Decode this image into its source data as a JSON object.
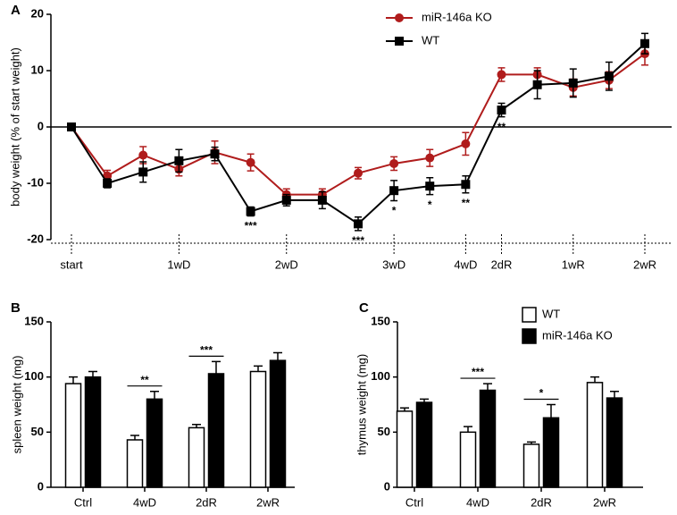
{
  "chart_data": [
    {
      "type": "line",
      "label": "A",
      "ylabel": "body weight (% of start weight)",
      "categories": [
        "start",
        null,
        null,
        "1wD",
        null,
        null,
        "2wD",
        null,
        null,
        "3wD",
        null,
        "4wD",
        "2dR",
        null,
        "1wR",
        null,
        "2wR"
      ],
      "ylim": [
        -20,
        20
      ],
      "yticks": [
        -20,
        -10,
        0,
        10,
        20
      ],
      "legend": "upper right",
      "series": [
        {
          "name": "miR-146a KO",
          "color": "#b01c1c",
          "marker": "circle",
          "values": [
            0,
            -8.7,
            -5,
            -7.5,
            -4.5,
            -6.3,
            -12,
            -12,
            -8.2,
            -6.5,
            -5.5,
            -3,
            9.3,
            9.3,
            7,
            8.3,
            13
          ],
          "errors": [
            0.5,
            1,
            1.5,
            1.2,
            2,
            1.5,
            1,
            1,
            1,
            1.2,
            1.5,
            2,
            1.2,
            1.2,
            1.5,
            1.5,
            2
          ]
        },
        {
          "name": "WT",
          "color": "#000000",
          "marker": "square",
          "values": [
            0,
            -10,
            -8,
            -6,
            -4.8,
            -15,
            -13,
            -13,
            -17.2,
            -11.3,
            -10.5,
            -10.2,
            3,
            7.5,
            7.8,
            9,
            14.8
          ],
          "errors": [
            0.5,
            0.8,
            1.8,
            2,
            1.2,
            0.8,
            1,
            1.5,
            1.2,
            1.8,
            1.5,
            1.5,
            1.2,
            2.5,
            2.5,
            2.5,
            1.8
          ]
        }
      ],
      "significance": [
        null,
        null,
        null,
        null,
        null,
        "***",
        null,
        null,
        "***",
        "*",
        "*",
        "**",
        "**",
        null,
        null,
        null,
        null
      ]
    },
    {
      "type": "bar",
      "label": "B",
      "ylabel": "spleen weight (mg)",
      "categories": [
        "Ctrl",
        "4wD",
        "2dR",
        "2wR"
      ],
      "ylim": [
        0,
        150
      ],
      "yticks": [
        0,
        50,
        100,
        150
      ],
      "series": [
        {
          "color": "#ffffff",
          "values": [
            94,
            43,
            54,
            105
          ],
          "errors": [
            6,
            4,
            3,
            5
          ]
        },
        {
          "color": "#000000",
          "values": [
            100,
            80,
            103,
            115
          ],
          "errors": [
            5,
            7,
            11,
            7
          ]
        }
      ],
      "significance": [
        null,
        "**",
        "***",
        null
      ]
    },
    {
      "type": "bar",
      "label": "C",
      "ylabel": "thymus weight (mg)",
      "categories": [
        "Ctrl",
        "4wD",
        "2dR",
        "2wR"
      ],
      "ylim": [
        0,
        150
      ],
      "yticks": [
        0,
        50,
        100,
        150
      ],
      "legend": "upper right",
      "series": [
        {
          "name": "WT",
          "color": "#ffffff",
          "values": [
            69,
            50,
            39,
            95
          ],
          "errors": [
            3,
            5,
            2,
            5
          ]
        },
        {
          "name": "miR-146a KO",
          "color": "#000000",
          "values": [
            77,
            88,
            63,
            81
          ],
          "errors": [
            3,
            6,
            12,
            6
          ]
        }
      ],
      "significance": [
        null,
        "***",
        "*",
        null
      ]
    }
  ]
}
